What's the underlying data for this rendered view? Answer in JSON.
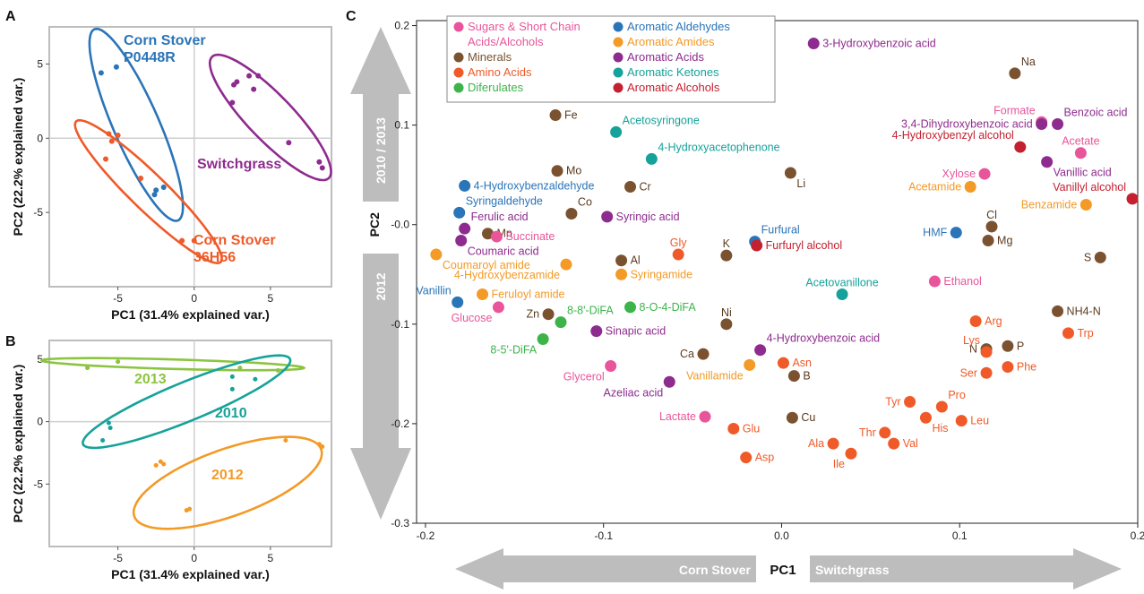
{
  "colors": {
    "Sugars": "#e8559a",
    "Minerals": "#7a5230",
    "AminoAcids": "#ef5a28",
    "Diferulates": "#3cb449",
    "Aldehydes": "#2a74b8",
    "Amides": "#f39a27",
    "Acids": "#8e2b8e",
    "Ketones": "#15a29a",
    "Alcohols": "#c4202f",
    "CornP0448R": "#2a74b8",
    "Corn36H56": "#ef5a28",
    "Switchgrass": "#8e2b8e",
    "y2013": "#8cc43f",
    "y2010": "#15a29a",
    "y2012": "#f39a27",
    "arrow": "#bdbdbd"
  },
  "panel_letters": {
    "a": "A",
    "b": "B",
    "c": "C"
  },
  "arrows": {
    "v_top": "2010 / 2013",
    "v_bottom": "2012",
    "h_left": "Corn Stover",
    "h_mid": "PC1",
    "h_right": "Switchgrass"
  },
  "chart_data": [
    {
      "type": "scatter",
      "panel": "A",
      "xlabel": "PC1 (31.4% explained var.)",
      "ylabel": "PC2 (22.2% explained var.)",
      "xlim": [
        -9.5,
        9
      ],
      "ylim": [
        -10,
        7.5
      ],
      "xticks": [
        -5,
        0,
        5
      ],
      "yticks": [
        -5,
        0,
        5
      ],
      "series": [
        {
          "name": "Corn Stover P0448R",
          "color_key": "CornP0448R",
          "label_lines": [
            "Corn Stover",
            "P0448R"
          ],
          "points": [
            [
              -6.1,
              4.4
            ],
            [
              -5.1,
              4.8
            ],
            [
              -2.5,
              -3.5
            ],
            [
              -2.0,
              -3.3
            ],
            [
              -2.6,
              -3.8
            ]
          ],
          "ellipse": {
            "cx": -3.8,
            "cy": 0.9,
            "a": 7.0,
            "b": 1.5,
            "angle": -67
          }
        },
        {
          "name": "Switchgrass",
          "color_key": "Switchgrass",
          "label_lines": [
            "Switchgrass"
          ],
          "points": [
            [
              2.6,
              3.6
            ],
            [
              2.8,
              3.8
            ],
            [
              3.6,
              4.2
            ],
            [
              4.2,
              4.2
            ],
            [
              3.9,
              3.3
            ],
            [
              2.5,
              2.4
            ],
            [
              6.2,
              -0.3
            ],
            [
              8.2,
              -1.6
            ],
            [
              8.4,
              -2.0
            ]
          ],
          "ellipse": {
            "cx": 5.0,
            "cy": 1.4,
            "a": 5.6,
            "b": 1.5,
            "angle": -47
          }
        },
        {
          "name": "Corn Stover 36H56",
          "color_key": "Corn36H56",
          "label_lines": [
            "Corn Stover",
            "36H56"
          ],
          "points": [
            [
              -5.8,
              -1.4
            ],
            [
              -5.4,
              -0.2
            ],
            [
              -5.0,
              0.2
            ],
            [
              -5.6,
              0.3
            ],
            [
              -3.5,
              -2.7
            ],
            [
              -0.8,
              -6.9
            ],
            [
              0.0,
              -6.9
            ]
          ],
          "ellipse": {
            "cx": -3.0,
            "cy": -3.6,
            "a": 6.7,
            "b": 1.2,
            "angle": -45
          }
        }
      ]
    },
    {
      "type": "scatter",
      "panel": "B",
      "xlabel": "PC1 (31.4% explained var.)",
      "ylabel": "PC2 (22.2% explained var.)",
      "xlim": [
        -9.5,
        9
      ],
      "ylim": [
        -10,
        6.5
      ],
      "xticks": [
        -5,
        0,
        5
      ],
      "yticks": [
        -5,
        0,
        5
      ],
      "series": [
        {
          "name": "2013",
          "color_key": "y2013",
          "label_lines": [
            "2013"
          ],
          "points": [
            [
              -7.0,
              4.3
            ],
            [
              -5.0,
              4.8
            ],
            [
              3.0,
              4.3
            ],
            [
              5.5,
              4.1
            ]
          ],
          "ellipse": {
            "cx": -1.4,
            "cy": 4.6,
            "a": 8.6,
            "b": 0.38,
            "angle": -2
          }
        },
        {
          "name": "2010",
          "color_key": "y2010",
          "label_lines": [
            "2010"
          ],
          "points": [
            [
              -6.0,
              -1.5
            ],
            [
              -5.5,
              -0.5
            ],
            [
              -5.6,
              -0.1
            ],
            [
              2.5,
              2.6
            ],
            [
              4.0,
              3.4
            ],
            [
              2.5,
              3.6
            ]
          ],
          "ellipse": {
            "cx": -0.5,
            "cy": 1.6,
            "a": 7.6,
            "b": 1.5,
            "angle": 27
          }
        },
        {
          "name": "2012",
          "color_key": "y2012",
          "label_lines": [
            "2012"
          ],
          "points": [
            [
              -2.5,
              -3.5
            ],
            [
              -2.2,
              -3.2
            ],
            [
              -2.0,
              -3.4
            ],
            [
              -0.5,
              -7.1
            ],
            [
              -0.3,
              -7.0
            ],
            [
              6.0,
              -1.5
            ],
            [
              8.2,
              -1.8
            ],
            [
              8.4,
              -2.0
            ]
          ],
          "ellipse": {
            "cx": 2.2,
            "cy": -4.9,
            "a": 6.7,
            "b": 2.6,
            "angle": 25
          }
        }
      ]
    },
    {
      "type": "scatter",
      "panel": "C",
      "xlabel": "",
      "ylabel": "PC2",
      "xlim": [
        -0.205,
        0.2
      ],
      "ylim": [
        -0.3,
        0.205
      ],
      "xticks": [
        -0.2,
        -0.1,
        0.0,
        0.1,
        0.2
      ],
      "xtick_labels": [
        "-0.2",
        "-0.1",
        "0.0",
        "0.1",
        "0.2"
      ],
      "yticks": [
        -0.3,
        -0.2,
        -0.1,
        0.0,
        0.1,
        0.2
      ],
      "ytick_labels": [
        "-0.3",
        "-0.2",
        "-0.1",
        "-0.0",
        "0.1",
        "0.2"
      ],
      "legend_position": "top-left",
      "legend": [
        {
          "key": "Sugars",
          "lines": [
            "Sugars & Short Chain",
            "Acids/Alcohols"
          ]
        },
        {
          "key": "Minerals",
          "lines": [
            "Minerals"
          ]
        },
        {
          "key": "AminoAcids",
          "lines": [
            "Amino Acids"
          ]
        },
        {
          "key": "Diferulates",
          "lines": [
            "Diferulates"
          ]
        },
        {
          "key": "Aldehydes",
          "lines": [
            "Aromatic Aldehydes"
          ]
        },
        {
          "key": "Amides",
          "lines": [
            "Aromatic Amides"
          ]
        },
        {
          "key": "Acids",
          "lines": [
            "Aromatic Acids"
          ]
        },
        {
          "key": "Ketones",
          "lines": [
            "Aromatic Ketones"
          ]
        },
        {
          "key": "Alcohols",
          "lines": [
            "Aromatic Alcohols"
          ]
        }
      ],
      "points": [
        {
          "label": "3-Hydroxybenzoic acid",
          "cat": "Acids",
          "x": 0.018,
          "y": 0.182,
          "pos": "r"
        },
        {
          "label": "Na",
          "cat": "Minerals",
          "x": 0.131,
          "y": 0.152,
          "pos": "ur"
        },
        {
          "label": "Fe",
          "cat": "Minerals",
          "x": -0.127,
          "y": 0.11,
          "pos": "r"
        },
        {
          "label": "Acetosyringone",
          "cat": "Ketones",
          "x": -0.093,
          "y": 0.093,
          "pos": "ur"
        },
        {
          "label": "Formate",
          "cat": "Sugars",
          "x": 0.146,
          "y": 0.103,
          "pos": "ul"
        },
        {
          "label": "3,4-Dihydroxybenzoic acid",
          "cat": "Acids",
          "x": 0.146,
          "y": 0.101,
          "pos": "l"
        },
        {
          "label": "Benzoic acid",
          "cat": "Acids",
          "x": 0.155,
          "y": 0.101,
          "pos": "ur"
        },
        {
          "label": "4-Hydroxybenzyl alcohol",
          "cat": "Alcohols",
          "x": 0.134,
          "y": 0.078,
          "pos": "ul"
        },
        {
          "label": "4-Hydroxyacetophenone",
          "cat": "Ketones",
          "x": -0.073,
          "y": 0.066,
          "pos": "ur"
        },
        {
          "label": "Acetate",
          "cat": "Sugars",
          "x": 0.168,
          "y": 0.072,
          "pos": "u"
        },
        {
          "label": "Vanillic acid",
          "cat": "Acids",
          "x": 0.149,
          "y": 0.063,
          "pos": "dr"
        },
        {
          "label": "Mo",
          "cat": "Minerals",
          "x": -0.126,
          "y": 0.054,
          "pos": "r"
        },
        {
          "label": "Li",
          "cat": "Minerals",
          "x": 0.005,
          "y": 0.052,
          "pos": "dr"
        },
        {
          "label": "Xylose",
          "cat": "Sugars",
          "x": 0.114,
          "y": 0.051,
          "pos": "l"
        },
        {
          "label": "Vanillyl alcohol",
          "cat": "Alcohols",
          "x": 0.197,
          "y": 0.026,
          "pos": "ul"
        },
        {
          "label": "4-Hydroxybenzaldehyde",
          "cat": "Aldehydes",
          "x": -0.178,
          "y": 0.039,
          "pos": "r"
        },
        {
          "label": "Cr",
          "cat": "Minerals",
          "x": -0.085,
          "y": 0.038,
          "pos": "r"
        },
        {
          "label": "Acetamide",
          "cat": "Amides",
          "x": 0.106,
          "y": 0.038,
          "pos": "l"
        },
        {
          "label": "Benzamide",
          "cat": "Amides",
          "x": 0.171,
          "y": 0.02,
          "pos": "l"
        },
        {
          "label": "Syringaldehyde",
          "cat": "Aldehydes",
          "x": -0.181,
          "y": 0.012,
          "pos": "ur"
        },
        {
          "label": "Co",
          "cat": "Minerals",
          "x": -0.118,
          "y": 0.011,
          "pos": "ur"
        },
        {
          "label": "Syringic acid",
          "cat": "Acids",
          "x": -0.098,
          "y": 0.008,
          "pos": "r"
        },
        {
          "label": "Cl",
          "cat": "Minerals",
          "x": 0.118,
          "y": -0.002,
          "pos": "u"
        },
        {
          "label": "Ferulic acid",
          "cat": "Acids",
          "x": -0.178,
          "y": -0.004,
          "pos": "ur"
        },
        {
          "label": "Furfural",
          "cat": "Aldehydes",
          "x": -0.015,
          "y": -0.017,
          "pos": "ur"
        },
        {
          "label": "HMF",
          "cat": "Aldehydes",
          "x": 0.098,
          "y": -0.008,
          "pos": "l"
        },
        {
          "label": "Mn",
          "cat": "Minerals",
          "x": -0.165,
          "y": -0.009,
          "pos": "r"
        },
        {
          "label": "Succinate",
          "cat": "Sugars",
          "x": -0.16,
          "y": -0.012,
          "pos": "r"
        },
        {
          "label": "Mg",
          "cat": "Minerals",
          "x": 0.116,
          "y": -0.016,
          "pos": "r"
        },
        {
          "label": "Coumaric acid",
          "cat": "Acids",
          "x": -0.18,
          "y": -0.016,
          "pos": "dr"
        },
        {
          "label": "Furfuryl alcohol",
          "cat": "Alcohols",
          "x": -0.014,
          "y": -0.021,
          "pos": "r"
        },
        {
          "label": "Gly",
          "cat": "AminoAcids",
          "x": -0.058,
          "y": -0.03,
          "pos": "u"
        },
        {
          "label": "K",
          "cat": "Minerals",
          "x": -0.031,
          "y": -0.031,
          "pos": "u"
        },
        {
          "label": "Coumaroyl amide",
          "cat": "Amides",
          "x": -0.194,
          "y": -0.03,
          "pos": "dr"
        },
        {
          "label": "S",
          "cat": "Minerals",
          "x": 0.179,
          "y": -0.033,
          "pos": "l"
        },
        {
          "label": "Al",
          "cat": "Minerals",
          "x": -0.09,
          "y": -0.036,
          "pos": "r"
        },
        {
          "label": "4-Hydroxybenzamide",
          "cat": "Amides",
          "x": -0.121,
          "y": -0.04,
          "pos": "dl"
        },
        {
          "label": "Syringamide",
          "cat": "Amides",
          "x": -0.09,
          "y": -0.05,
          "pos": "r"
        },
        {
          "label": "Ethanol",
          "cat": "Sugars",
          "x": 0.086,
          "y": -0.057,
          "pos": "r"
        },
        {
          "label": "Feruloyl amide",
          "cat": "Amides",
          "x": -0.168,
          "y": -0.07,
          "pos": "r"
        },
        {
          "label": "Acetovanillone",
          "cat": "Ketones",
          "x": 0.034,
          "y": -0.07,
          "pos": "u"
        },
        {
          "label": "Vanillin",
          "cat": "Aldehydes",
          "x": -0.182,
          "y": -0.078,
          "pos": "ul"
        },
        {
          "label": "Glucose",
          "cat": "Sugars",
          "x": -0.159,
          "y": -0.083,
          "pos": "dl"
        },
        {
          "label": "8-O-4-DiFA",
          "cat": "Diferulates",
          "x": -0.085,
          "y": -0.083,
          "pos": "r"
        },
        {
          "label": "NH4-N",
          "cat": "Minerals",
          "x": 0.155,
          "y": -0.087,
          "pos": "r"
        },
        {
          "label": "Zn",
          "cat": "Minerals",
          "x": -0.131,
          "y": -0.09,
          "pos": "l"
        },
        {
          "label": "8-8'-DiFA",
          "cat": "Diferulates",
          "x": -0.124,
          "y": -0.098,
          "pos": "ur"
        },
        {
          "label": "Arg",
          "cat": "AminoAcids",
          "x": 0.109,
          "y": -0.097,
          "pos": "r"
        },
        {
          "label": "Ni",
          "cat": "Minerals",
          "x": -0.031,
          "y": -0.1,
          "pos": "u"
        },
        {
          "label": "Sinapic acid",
          "cat": "Acids",
          "x": -0.104,
          "y": -0.107,
          "pos": "r"
        },
        {
          "label": "Trp",
          "cat": "AminoAcids",
          "x": 0.161,
          "y": -0.109,
          "pos": "r"
        },
        {
          "label": "8-5'-DiFA",
          "cat": "Diferulates",
          "x": -0.134,
          "y": -0.115,
          "pos": "dl"
        },
        {
          "label": "P",
          "cat": "Minerals",
          "x": 0.127,
          "y": -0.122,
          "pos": "r"
        },
        {
          "label": "N",
          "cat": "Minerals",
          "x": 0.115,
          "y": -0.125,
          "pos": "l"
        },
        {
          "label": "4-Hydroxybenzoic acid",
          "cat": "Acids",
          "x": -0.012,
          "y": -0.126,
          "pos": "ur"
        },
        {
          "label": "Lys",
          "cat": "AminoAcids",
          "x": 0.115,
          "y": -0.128,
          "pos": "ul"
        },
        {
          "label": "Ca",
          "cat": "Minerals",
          "x": -0.044,
          "y": -0.13,
          "pos": "l"
        },
        {
          "label": "Asn",
          "cat": "AminoAcids",
          "x": 0.001,
          "y": -0.139,
          "pos": "r"
        },
        {
          "label": "Vanillamide",
          "cat": "Amides",
          "x": -0.018,
          "y": -0.141,
          "pos": "dl"
        },
        {
          "label": "Glycerol",
          "cat": "Sugars",
          "x": -0.096,
          "y": -0.142,
          "pos": "dl"
        },
        {
          "label": "Phe",
          "cat": "AminoAcids",
          "x": 0.127,
          "y": -0.143,
          "pos": "r"
        },
        {
          "label": "Ser",
          "cat": "AminoAcids",
          "x": 0.115,
          "y": -0.149,
          "pos": "l"
        },
        {
          "label": "B",
          "cat": "Minerals",
          "x": 0.007,
          "y": -0.152,
          "pos": "r"
        },
        {
          "label": "Azeliac acid",
          "cat": "Acids",
          "x": -0.063,
          "y": -0.158,
          "pos": "dl"
        },
        {
          "label": "Tyr",
          "cat": "AminoAcids",
          "x": 0.072,
          "y": -0.178,
          "pos": "l"
        },
        {
          "label": "Pro",
          "cat": "AminoAcids",
          "x": 0.09,
          "y": -0.183,
          "pos": "ur"
        },
        {
          "label": "Lactate",
          "cat": "Sugars",
          "x": -0.043,
          "y": -0.193,
          "pos": "l"
        },
        {
          "label": "His",
          "cat": "AminoAcids",
          "x": 0.081,
          "y": -0.194,
          "pos": "dr"
        },
        {
          "label": "Cu",
          "cat": "Minerals",
          "x": 0.006,
          "y": -0.194,
          "pos": "r"
        },
        {
          "label": "Leu",
          "cat": "AminoAcids",
          "x": 0.101,
          "y": -0.197,
          "pos": "r"
        },
        {
          "label": "Glu",
          "cat": "AminoAcids",
          "x": -0.027,
          "y": -0.205,
          "pos": "r"
        },
        {
          "label": "Thr",
          "cat": "AminoAcids",
          "x": 0.058,
          "y": -0.209,
          "pos": "l"
        },
        {
          "label": "Ala",
          "cat": "AminoAcids",
          "x": 0.029,
          "y": -0.22,
          "pos": "l"
        },
        {
          "label": "Val",
          "cat": "AminoAcids",
          "x": 0.063,
          "y": -0.22,
          "pos": "r"
        },
        {
          "label": "Ile",
          "cat": "AminoAcids",
          "x": 0.039,
          "y": -0.23,
          "pos": "dl"
        },
        {
          "label": "Asp",
          "cat": "AminoAcids",
          "x": -0.02,
          "y": -0.234,
          "pos": "r"
        }
      ]
    }
  ]
}
